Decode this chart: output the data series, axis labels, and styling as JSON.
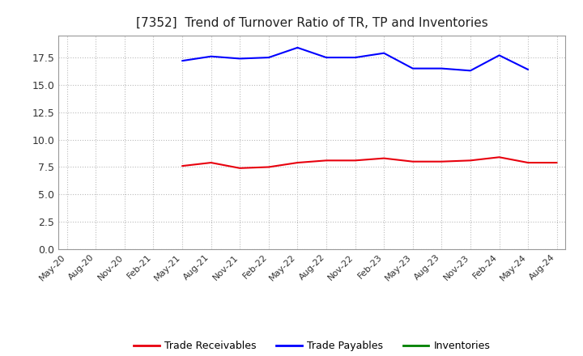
{
  "title": "[7352]  Trend of Turnover Ratio of TR, TP and Inventories",
  "x_labels": [
    "May-20",
    "Aug-20",
    "Nov-20",
    "Feb-21",
    "May-21",
    "Aug-21",
    "Nov-21",
    "Feb-22",
    "May-22",
    "Aug-22",
    "Nov-22",
    "Feb-23",
    "May-23",
    "Aug-23",
    "Nov-23",
    "Feb-24",
    "May-24",
    "Aug-24"
  ],
  "trade_receivables": [
    null,
    null,
    null,
    null,
    7.6,
    7.9,
    7.4,
    7.5,
    7.9,
    8.1,
    8.1,
    8.3,
    8.0,
    8.0,
    8.1,
    8.4,
    7.9,
    7.9
  ],
  "trade_payables": [
    null,
    null,
    null,
    null,
    17.2,
    17.6,
    17.4,
    17.5,
    18.4,
    17.5,
    17.5,
    17.9,
    16.5,
    16.5,
    16.3,
    17.7,
    16.4,
    null
  ],
  "inventories": [
    null,
    null,
    null,
    null,
    null,
    null,
    null,
    null,
    null,
    null,
    null,
    null,
    null,
    null,
    null,
    null,
    null,
    null
  ],
  "ylim": [
    0,
    19.5
  ],
  "yticks": [
    0.0,
    2.5,
    5.0,
    7.5,
    10.0,
    12.5,
    15.0,
    17.5
  ],
  "color_tr": "#e8000d",
  "color_tp": "#0000ff",
  "color_inv": "#008000",
  "background_color": "#ffffff",
  "grid_color": "#bbbbbb",
  "title_fontsize": 11,
  "tick_fontsize": 8,
  "legend_labels": [
    "Trade Receivables",
    "Trade Payables",
    "Inventories"
  ]
}
